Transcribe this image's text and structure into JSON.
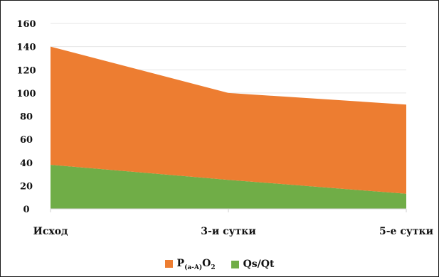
{
  "chart_data": {
    "type": "area",
    "stacked": true,
    "categories": [
      "Исход",
      "3-и сутки",
      "5-е сутки"
    ],
    "ylim": [
      0,
      160
    ],
    "yticks": [
      "160",
      "140",
      "120",
      "100",
      "80",
      "60",
      "40",
      "20",
      "0"
    ],
    "grid": true,
    "legend_position": "bottom",
    "series": [
      {
        "name": "Qs/Qt",
        "values": [
          38,
          25,
          13
        ],
        "color": "#70ad47"
      },
      {
        "name": "P(a-A)O2",
        "name_base": "P",
        "name_sub": "(a-A)",
        "name_tail": "O",
        "name_sub2": "2",
        "values": [
          102,
          75,
          77
        ],
        "color": "#ed7d31"
      }
    ]
  }
}
